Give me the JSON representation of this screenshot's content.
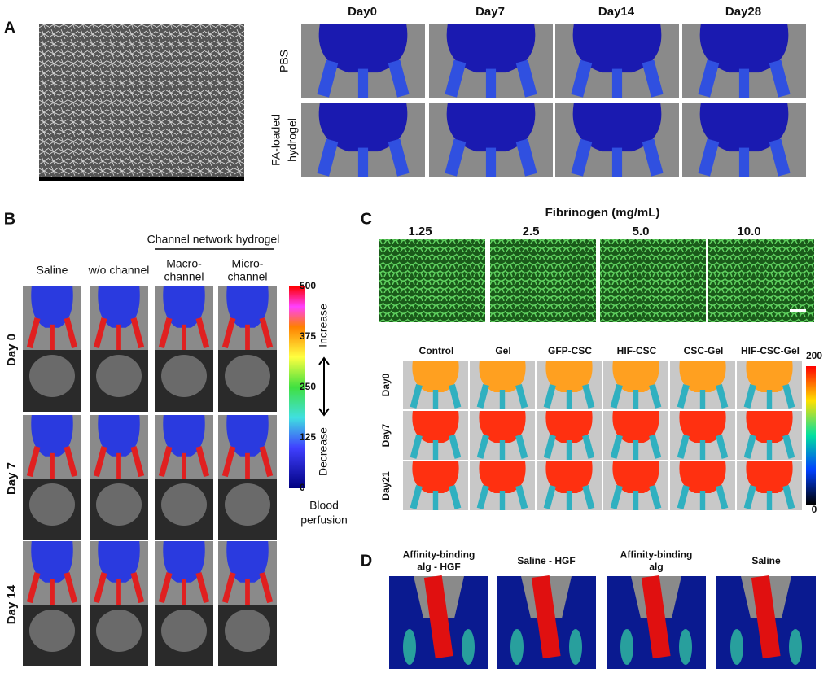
{
  "panel_a": {
    "label": "A",
    "columns": [
      "Day0",
      "Day7",
      "Day14",
      "Day28"
    ],
    "rows": [
      [
        "PBS"
      ],
      [
        "FA-loaded",
        "hydrogel"
      ]
    ]
  },
  "panel_b": {
    "label": "B",
    "group_title": "Channel network hydrogel",
    "columns": [
      [
        "Saline"
      ],
      [
        "w/o channel"
      ],
      [
        "Macro-",
        "channel"
      ],
      [
        "Micro-",
        "channel"
      ]
    ],
    "rows": [
      "Day 0",
      "Day 7",
      "Day 14"
    ],
    "colorbar_ticks": [
      "500",
      "375",
      "250",
      "125",
      "0"
    ],
    "increase": "Increase",
    "decrease": "Decrease",
    "colorbar_title": [
      "Blood",
      "perfusion"
    ]
  },
  "panel_c": {
    "label": "C",
    "title": "Fibrinogen (mg/mL)",
    "concentrations": [
      "1.25",
      "2.5",
      "5.0",
      "10.0"
    ],
    "columns": [
      "Control",
      "Gel",
      "GFP-CSC",
      "HIF-CSC",
      "CSC-Gel",
      "HIF-CSC-Gel"
    ],
    "rows": [
      "Day0",
      "Day7",
      "Day21"
    ],
    "colorbar_ticks": [
      "200",
      "0"
    ]
  },
  "panel_d": {
    "label": "D",
    "columns": [
      [
        "Affinity-binding",
        "alg - HGF"
      ],
      [
        "Saline - HGF"
      ],
      [
        "Affinity-binding",
        "alg"
      ],
      [
        "Saline"
      ]
    ]
  }
}
